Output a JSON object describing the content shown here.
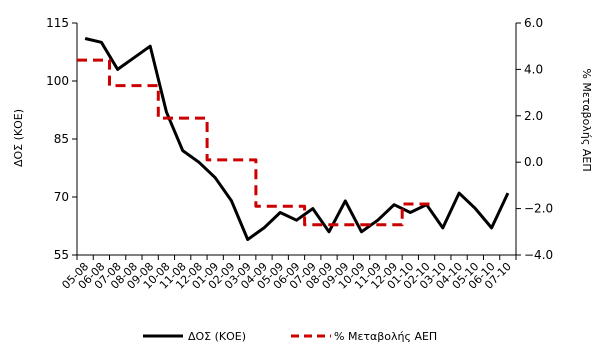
{
  "chart_data": {
    "type": "line",
    "categories": [
      "05-08",
      "06-08",
      "07-08",
      "08-08",
      "09-08",
      "10-08",
      "11-08",
      "12-08",
      "01-09",
      "02-09",
      "03-09",
      "04-09",
      "05-09",
      "06-09",
      "07-09",
      "08-09",
      "09-09",
      "10-09",
      "11-09",
      "12-09",
      "01-10",
      "02-10",
      "03-10",
      "04-10",
      "05-10",
      "06-10",
      "07-10"
    ],
    "ylabel_left": "ΔΟΣ (ΚΟΕ)",
    "ylabel_right": "% Μεταβολής ΑΕΠ",
    "ylim_left": [
      55,
      115
    ],
    "ylim_right": [
      -4.0,
      6.0
    ],
    "yticks_left": [
      "55",
      "70",
      "85",
      "100",
      "115"
    ],
    "yticks_right": [
      "−4.0",
      "−2.0",
      "0.0",
      "2.0",
      "4.0",
      "6.0"
    ],
    "series": [
      {
        "name": "ΔΟΣ (ΚΟΕ)",
        "axis": "left",
        "style": "solid",
        "color": "#000000",
        "values": [
          111,
          110,
          103,
          106,
          109,
          92,
          82,
          79,
          75,
          69,
          59,
          62,
          66,
          64,
          67,
          61,
          69,
          61,
          64,
          68,
          66,
          68,
          62,
          71,
          67,
          62,
          71
        ]
      },
      {
        "name": "% Μεταβολής ΑΕΠ",
        "axis": "right",
        "style": "dashed",
        "color": "#cc0000",
        "values": [
          4.4,
          4.4,
          3.3,
          3.3,
          3.3,
          1.9,
          1.9,
          1.9,
          0.1,
          0.1,
          0.1,
          -1.9,
          -1.9,
          -1.9,
          -2.7,
          -2.7,
          -2.7,
          -2.7,
          -2.7,
          -2.7,
          -1.8,
          -1.8,
          null,
          null,
          null,
          null,
          null
        ]
      }
    ],
    "legend_position": "bottom",
    "grid": false
  }
}
